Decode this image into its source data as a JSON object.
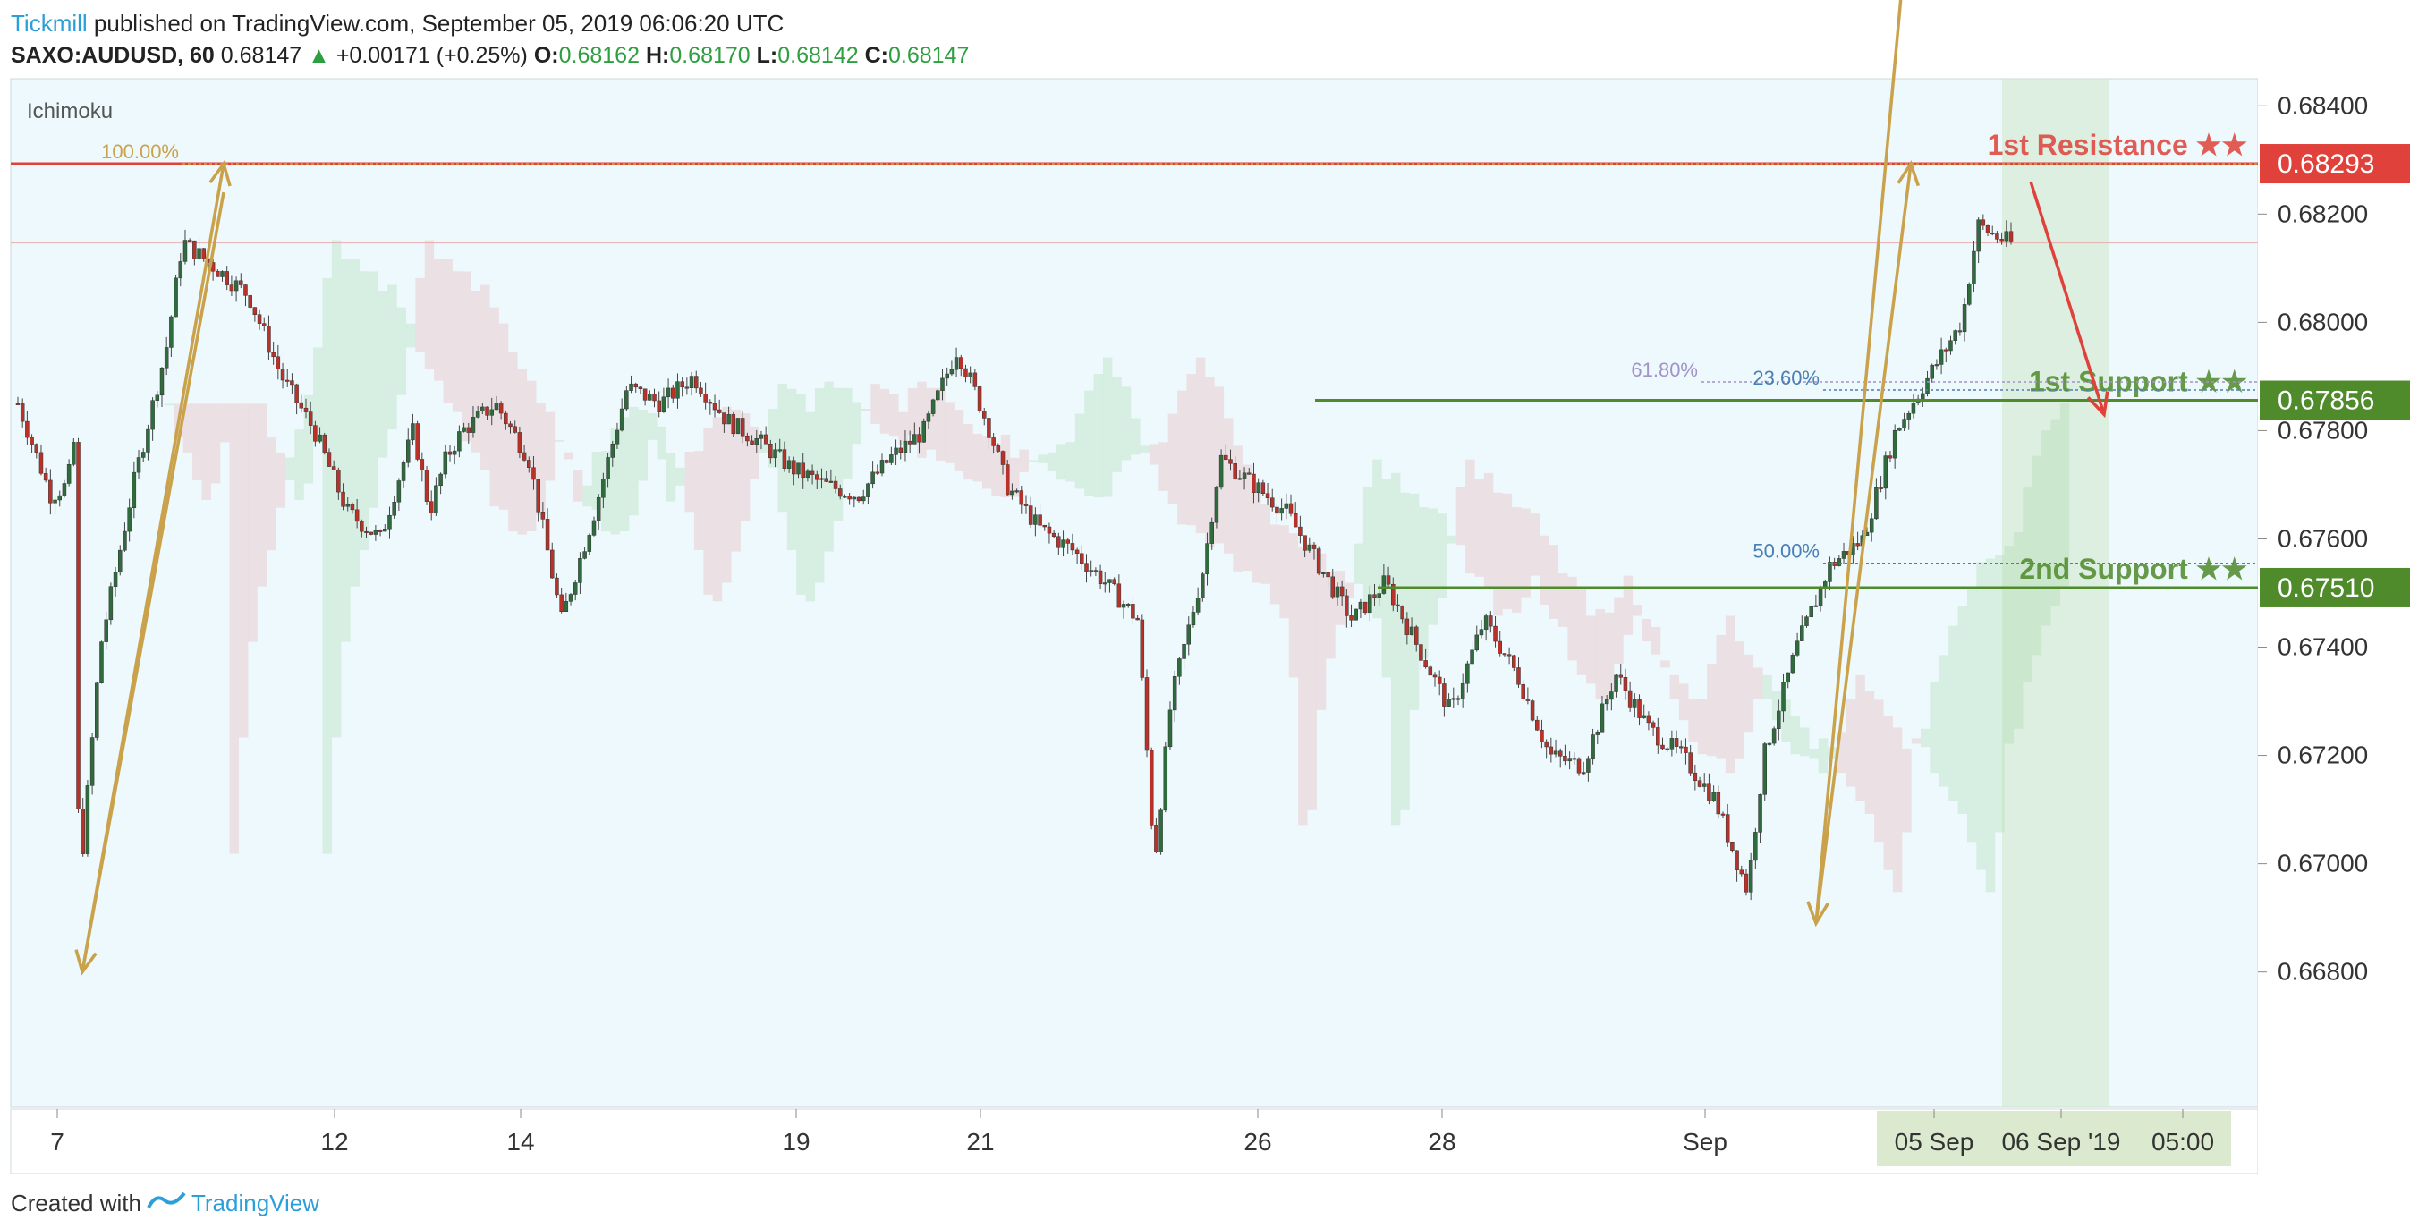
{
  "header": {
    "brand": "Tickmill",
    "published_text": "published on TradingView.com, September 05, 2019 06:06:20 UTC",
    "symbol": "SAXO:AUDUSD, 60",
    "last": "0.68147",
    "change": "+0.00171 (+0.25%)",
    "o_label": "O:",
    "o_value": "0.68162",
    "h_label": "H:",
    "h_value": "0.68170",
    "l_label": "L:",
    "l_value": "0.68142",
    "c_label": "C:",
    "c_value": "0.68147"
  },
  "indicator_label": "Ichimoku",
  "footer": {
    "created_with": "Created with",
    "tradingview": "TradingView"
  },
  "colors": {
    "resistance": "#e0413a",
    "support": "#4f8a2b",
    "bull": "#2f6b3c",
    "bear": "#b8322a",
    "fib_arrow": "#c9a24b",
    "background": "#eef9fd"
  },
  "chart_data": {
    "type": "candlestick",
    "symbol": "SAXO:AUDUSD",
    "timeframe": "60",
    "ylim": [
      0.6655,
      0.6845
    ],
    "y_ticks": [
      "0.68400",
      "0.68200",
      "0.68000",
      "0.67800",
      "0.67600",
      "0.67400",
      "0.67200",
      "0.67000",
      "0.66800"
    ],
    "x_ticks": [
      {
        "label": "7",
        "date": "2019-08-07"
      },
      {
        "label": "12",
        "date": "2019-08-12"
      },
      {
        "label": "14",
        "date": "2019-08-14"
      },
      {
        "label": "19",
        "date": "2019-08-19"
      },
      {
        "label": "21",
        "date": "2019-08-21"
      },
      {
        "label": "26",
        "date": "2019-08-26"
      },
      {
        "label": "28",
        "date": "2019-08-28"
      },
      {
        "label": "Sep",
        "date": "2019-09-02"
      },
      {
        "label": "05 Sep",
        "date": "2019-09-05"
      },
      {
        "label": "06 Sep '19",
        "date": "2019-09-06"
      },
      {
        "label": "05:00",
        "date": "2019-09-06 05:00"
      }
    ],
    "levels": [
      {
        "name": "1st Resistance ★★",
        "value": 0.68293,
        "label": "0.68293",
        "color": "#e0413a"
      },
      {
        "name": "1st Support ★★",
        "value": 0.67856,
        "label": "0.67856",
        "color": "#4f8a2b"
      },
      {
        "name": "2nd Support ★★",
        "value": 0.6751,
        "label": "0.67510",
        "color": "#4f8a2b"
      }
    ],
    "fib_labels": [
      {
        "label": "100.00%",
        "value": 0.68293
      },
      {
        "label": "61.80%",
        "value": 0.6789
      },
      {
        "label": "23.60%",
        "value": 0.67875
      },
      {
        "label": "50.00%",
        "value": 0.67555
      }
    ],
    "price_path": [
      [
        0.0,
        0.6785
      ],
      [
        0.02,
        0.6768
      ],
      [
        0.03,
        0.677
      ],
      [
        0.035,
        0.678
      ],
      [
        0.037,
        0.6695
      ],
      [
        0.04,
        0.6705
      ],
      [
        0.05,
        0.674
      ],
      [
        0.07,
        0.677
      ],
      [
        0.09,
        0.6795
      ],
      [
        0.1,
        0.6815
      ],
      [
        0.12,
        0.681
      ],
      [
        0.14,
        0.6805
      ],
      [
        0.16,
        0.679
      ],
      [
        0.18,
        0.678
      ],
      [
        0.2,
        0.6765
      ],
      [
        0.22,
        0.676
      ],
      [
        0.24,
        0.678
      ],
      [
        0.25,
        0.6765
      ],
      [
        0.26,
        0.6775
      ],
      [
        0.27,
        0.678
      ],
      [
        0.29,
        0.6785
      ],
      [
        0.31,
        0.6775
      ],
      [
        0.33,
        0.6745
      ],
      [
        0.35,
        0.6765
      ],
      [
        0.37,
        0.6788
      ],
      [
        0.39,
        0.6785
      ],
      [
        0.41,
        0.679
      ],
      [
        0.43,
        0.6782
      ],
      [
        0.45,
        0.6778
      ],
      [
        0.47,
        0.6773
      ],
      [
        0.49,
        0.677
      ],
      [
        0.51,
        0.6768
      ],
      [
        0.53,
        0.6775
      ],
      [
        0.55,
        0.678
      ],
      [
        0.57,
        0.6795
      ],
      [
        0.58,
        0.6788
      ],
      [
        0.59,
        0.678
      ],
      [
        0.6,
        0.677
      ],
      [
        0.62,
        0.6762
      ],
      [
        0.64,
        0.6758
      ],
      [
        0.66,
        0.6752
      ],
      [
        0.68,
        0.6745
      ],
      [
        0.69,
        0.67
      ],
      [
        0.7,
        0.673
      ],
      [
        0.72,
        0.6755
      ],
      [
        0.73,
        0.6775
      ],
      [
        0.75,
        0.677
      ],
      [
        0.77,
        0.6765
      ],
      [
        0.79,
        0.6755
      ],
      [
        0.81,
        0.6745
      ],
      [
        0.83,
        0.6752
      ],
      [
        0.85,
        0.674
      ],
      [
        0.87,
        0.6728
      ],
      [
        0.89,
        0.6745
      ],
      [
        0.91,
        0.6735
      ],
      [
        0.93,
        0.672
      ],
      [
        0.95,
        0.6718
      ],
      [
        0.97,
        0.6735
      ],
      [
        0.99,
        0.6725
      ],
      [
        1.01,
        0.672
      ],
      [
        1.03,
        0.6712
      ],
      [
        1.05,
        0.6695
      ],
      [
        1.06,
        0.672
      ],
      [
        1.08,
        0.674
      ],
      [
        1.1,
        0.6755
      ],
      [
        1.12,
        0.676
      ],
      [
        1.14,
        0.678
      ],
      [
        1.16,
        0.679
      ],
      [
        1.18,
        0.68
      ],
      [
        1.19,
        0.6818
      ],
      [
        1.2,
        0.6816
      ],
      [
        1.21,
        0.68147
      ]
    ]
  }
}
